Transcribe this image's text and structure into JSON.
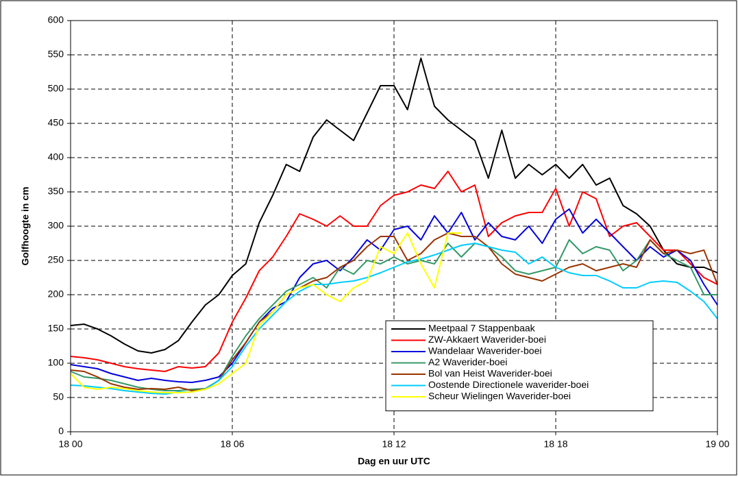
{
  "chart_data": {
    "type": "line",
    "x_label": "Dag en uur UTC",
    "y_label": "Golfhoogte in cm",
    "x": [
      0,
      0.5,
      1,
      1.5,
      2,
      2.5,
      3,
      3.5,
      4,
      4.5,
      5,
      5.5,
      6,
      6.5,
      7,
      7.5,
      8,
      8.5,
      9,
      9.5,
      10,
      10.5,
      11,
      11.5,
      12,
      12.5,
      13,
      13.5,
      14,
      14.5,
      15,
      15.5,
      16,
      16.5,
      17,
      17.5,
      18,
      18.5,
      19,
      19.5,
      20,
      20.5,
      21,
      21.5,
      22,
      22.5,
      23,
      23.5,
      24
    ],
    "xlim": [
      0,
      24
    ],
    "xticks": [
      {
        "value": 0,
        "label": "18 00"
      },
      {
        "value": 6,
        "label": "18 06"
      },
      {
        "value": 12,
        "label": "18 12"
      },
      {
        "value": 18,
        "label": "18 18"
      },
      {
        "value": 24,
        "label": "19 00"
      }
    ],
    "ylim": [
      0,
      600
    ],
    "yticks": [
      0,
      50,
      100,
      150,
      200,
      250,
      300,
      350,
      400,
      450,
      500,
      550,
      600
    ],
    "grid": true,
    "legend": "lower-right",
    "series": [
      {
        "name": "Meetpaal 7 Stappenbaak",
        "color": "#000000",
        "values": [
          155,
          157,
          150,
          140,
          128,
          118,
          115,
          120,
          133,
          160,
          185,
          200,
          228,
          245,
          305,
          345,
          390,
          380,
          430,
          455,
          440,
          425,
          465,
          505,
          505,
          470,
          545,
          475,
          455,
          440,
          425,
          370,
          440,
          370,
          390,
          375,
          390,
          370,
          390,
          360,
          370,
          330,
          318,
          300,
          265,
          245,
          240,
          240,
          232
        ]
      },
      {
        "name": "ZW-Akkaert Waverider-boei",
        "color": "#ff0000",
        "values": [
          110,
          108,
          105,
          100,
          95,
          92,
          90,
          88,
          95,
          93,
          95,
          115,
          160,
          195,
          235,
          255,
          285,
          318,
          310,
          300,
          315,
          300,
          300,
          330,
          345,
          350,
          360,
          355,
          380,
          350,
          360,
          285,
          305,
          315,
          320,
          320,
          355,
          300,
          350,
          340,
          285,
          300,
          305,
          285,
          265,
          265,
          245,
          225,
          215
        ]
      },
      {
        "name": "Wandelaar Waverider-boei",
        "color": "#0000dd",
        "values": [
          98,
          95,
          92,
          85,
          80,
          75,
          78,
          75,
          73,
          72,
          75,
          80,
          100,
          130,
          160,
          180,
          190,
          225,
          245,
          250,
          235,
          255,
          280,
          265,
          295,
          300,
          280,
          315,
          290,
          320,
          280,
          305,
          285,
          280,
          300,
          275,
          310,
          325,
          290,
          310,
          290,
          270,
          250,
          270,
          255,
          265,
          250,
          215,
          185
        ]
      },
      {
        "name": "A2 Waverider-boei",
        "color": "#339966",
        "values": [
          88,
          80,
          78,
          75,
          70,
          65,
          62,
          60,
          60,
          62,
          63,
          75,
          110,
          140,
          165,
          185,
          205,
          215,
          225,
          210,
          240,
          230,
          250,
          245,
          255,
          245,
          250,
          245,
          275,
          255,
          275,
          270,
          255,
          235,
          230,
          235,
          240,
          280,
          260,
          270,
          265,
          235,
          250,
          280,
          260,
          250,
          240,
          200,
          200
        ]
      },
      {
        "name": "Bol van Heist Waverider-boei",
        "color": "#993300",
        "values": [
          90,
          88,
          80,
          70,
          65,
          62,
          63,
          62,
          65,
          60,
          62,
          75,
          105,
          130,
          160,
          175,
          200,
          210,
          220,
          225,
          240,
          250,
          270,
          285,
          285,
          250,
          260,
          280,
          290,
          285,
          285,
          270,
          245,
          230,
          225,
          220,
          230,
          240,
          245,
          235,
          240,
          245,
          240,
          280,
          260,
          265,
          260,
          265,
          215
        ]
      },
      {
        "name": "Oostende Directionele waverider-boei",
        "color": "#00ccff",
        "values": [
          68,
          67,
          65,
          63,
          60,
          58,
          56,
          55,
          58,
          58,
          62,
          75,
          95,
          125,
          150,
          170,
          190,
          205,
          215,
          215,
          218,
          220,
          225,
          232,
          240,
          248,
          252,
          258,
          265,
          272,
          275,
          270,
          265,
          262,
          245,
          255,
          240,
          232,
          228,
          228,
          220,
          210,
          210,
          218,
          220,
          218,
          205,
          190,
          165
        ]
      },
      {
        "name": "Scheur Wielingen Waverider-boei",
        "color": "#ffff00",
        "values": [
          85,
          65,
          62,
          65,
          63,
          60,
          58,
          57,
          57,
          58,
          62,
          70,
          85,
          100,
          155,
          175,
          200,
          210,
          215,
          200,
          190,
          210,
          220,
          270,
          260,
          290,
          245,
          210,
          290,
          290,
          null,
          null,
          null,
          null,
          null,
          null,
          null,
          null,
          null,
          null,
          null,
          null,
          null,
          null,
          null,
          null,
          null,
          null,
          null
        ]
      }
    ]
  }
}
